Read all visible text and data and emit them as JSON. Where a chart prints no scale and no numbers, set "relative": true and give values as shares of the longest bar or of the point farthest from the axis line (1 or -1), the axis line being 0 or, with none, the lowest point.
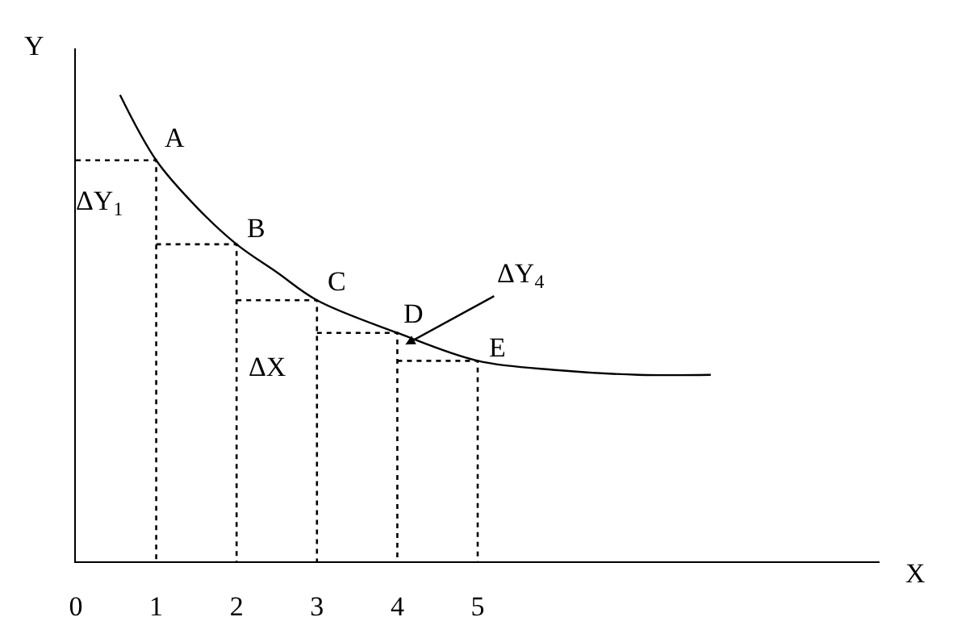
{
  "chart_data": {
    "type": "line",
    "relative": true,
    "xlabel": "X",
    "ylabel": "Y",
    "xlim": [
      0,
      10
    ],
    "xticks": [
      0,
      1,
      2,
      3,
      4,
      5
    ],
    "series": [
      {
        "color": "#000000",
        "line_style": "solid",
        "marker": "none",
        "x": [
          0.55,
          1,
          1.5,
          2,
          2.5,
          3,
          4,
          5,
          6,
          7,
          7.9
        ],
        "values": [
          1,
          0.86,
          0.76,
          0.68,
          0.62,
          0.56,
          0.49,
          0.43,
          0.41,
          0.4,
          0.4
        ]
      },
      {
        "color": "#000000",
        "line_style": "dotted",
        "marker": "none",
        "x": [
          0,
          1,
          1,
          null,
          1,
          2,
          2,
          null,
          2,
          3,
          3,
          null,
          3,
          4,
          4,
          null,
          4,
          5,
          5
        ],
        "values": [
          0.86,
          0.86,
          0,
          null,
          0.68,
          0.68,
          0,
          null,
          0.56,
          0.56,
          0,
          null,
          0.49,
          0.49,
          0,
          null,
          0.43,
          0.43,
          0
        ]
      }
    ],
    "annotations": [
      {
        "text": "A",
        "x": 1,
        "y": 0.86
      },
      {
        "text": "B",
        "x": 2,
        "y": 0.68
      },
      {
        "text": "C",
        "x": 3,
        "y": 0.56
      },
      {
        "text": "D",
        "x": 4,
        "y": 0.49
      },
      {
        "text": "E",
        "x": 5,
        "y": 0.43
      },
      "ΔY$_{1}$",
      "ΔX",
      {
        "text": "ΔY$_{4}$",
        "x": 4.1,
        "y": 0.465
      }
    ]
  }
}
